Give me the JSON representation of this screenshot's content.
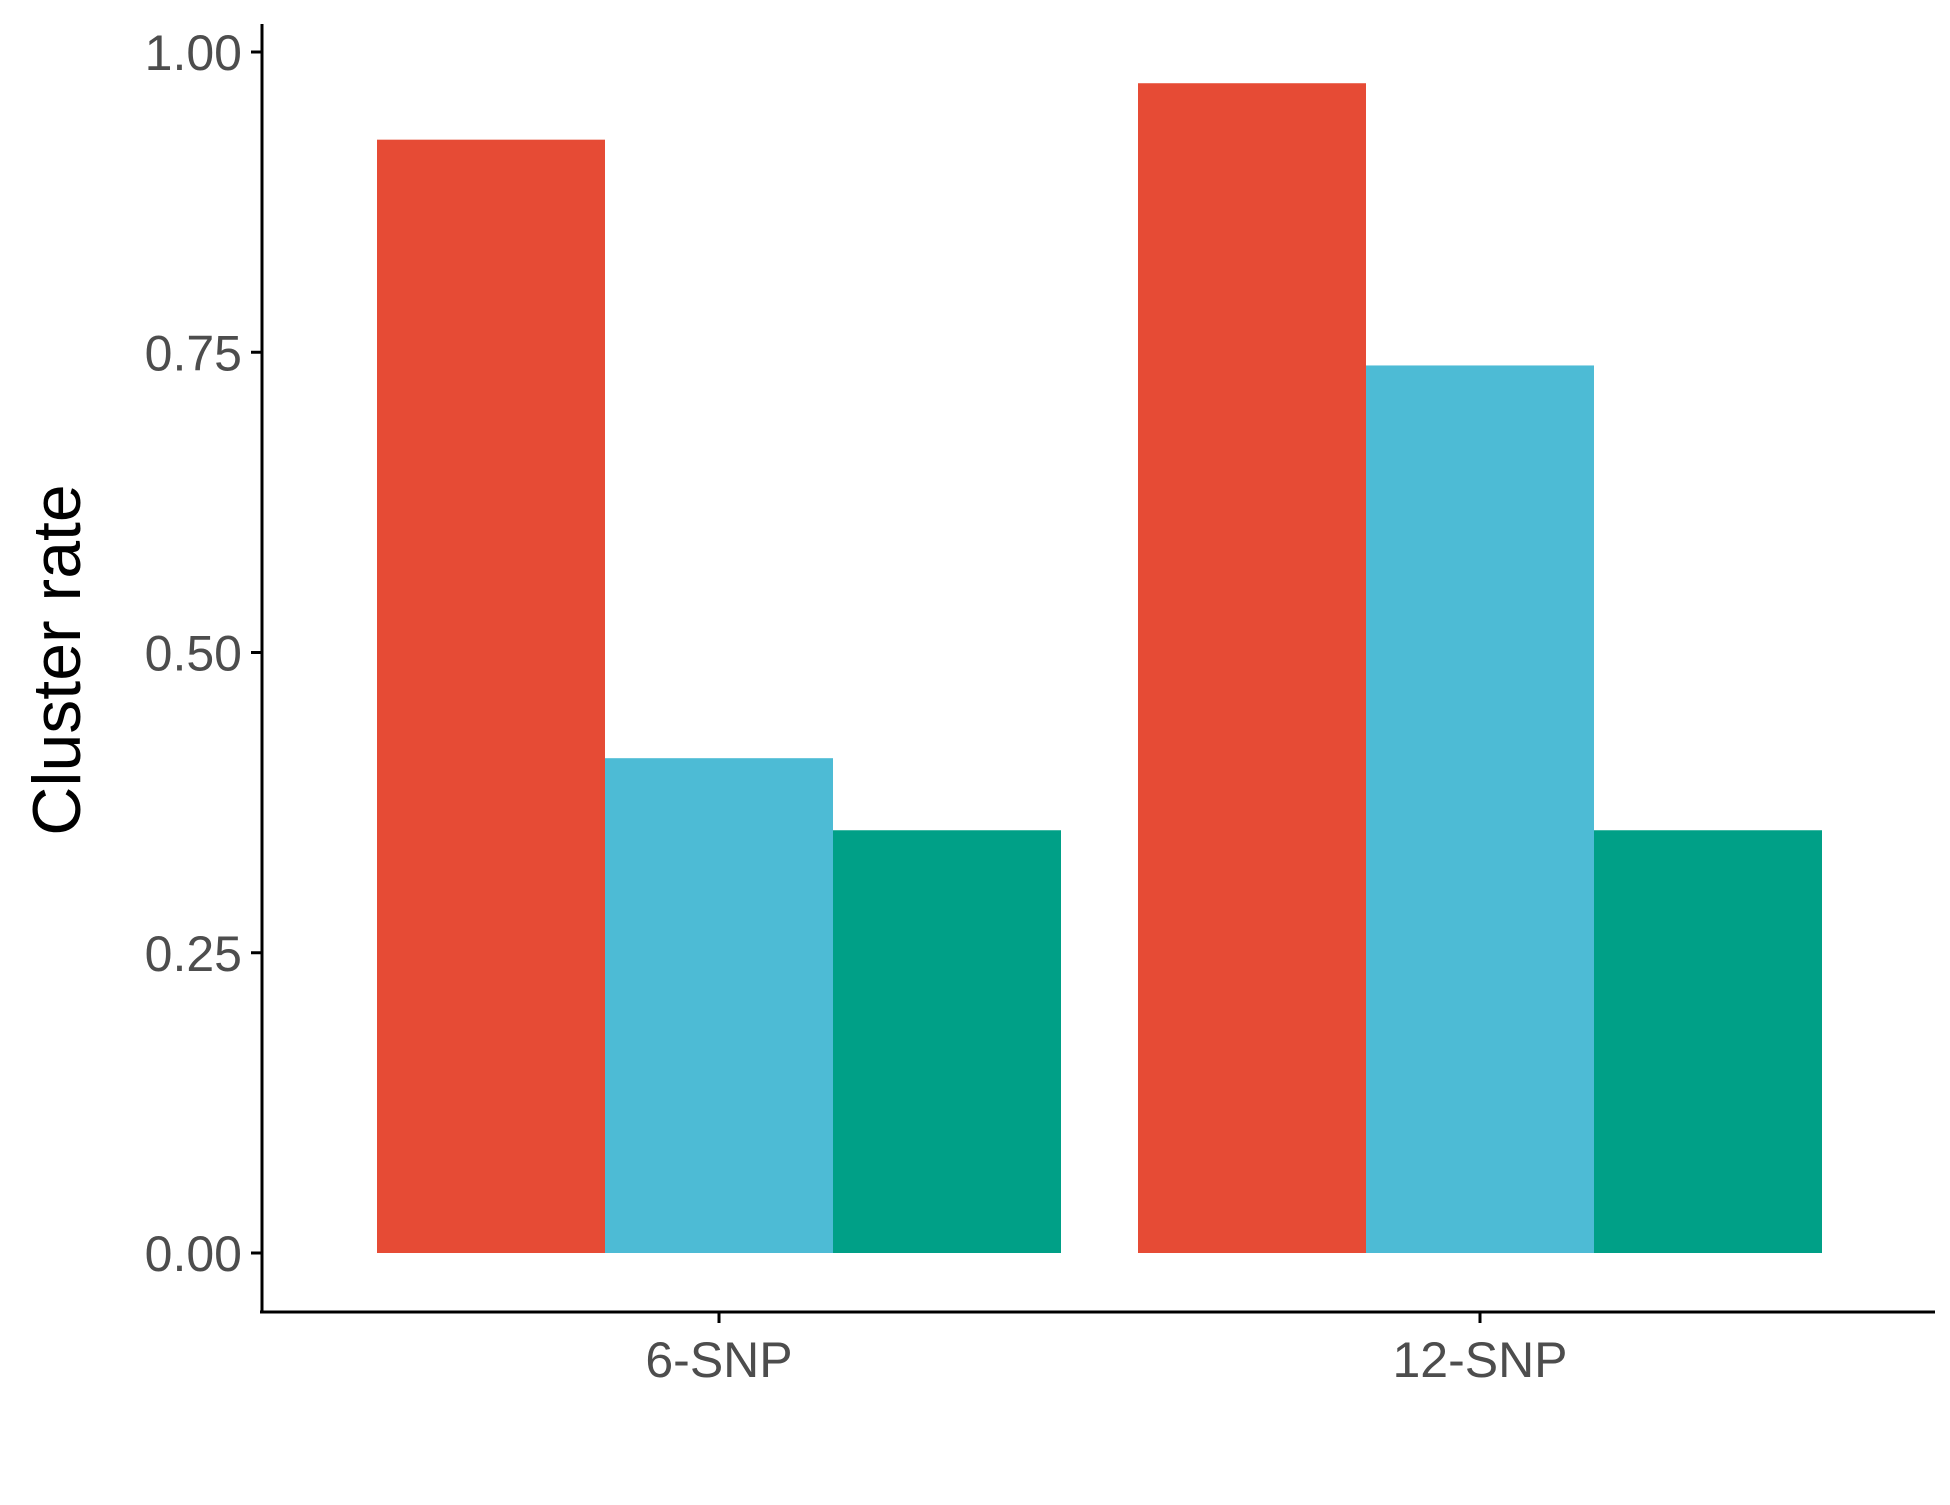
{
  "chart_data": {
    "type": "bar",
    "title": "",
    "xlabel": "",
    "ylabel": "Cluster rate",
    "categories": [
      "6-SNP",
      "12-SNP"
    ],
    "series": [
      {
        "color": "#E64B35",
        "values": [
          0.927,
          0.974
        ]
      },
      {
        "color": "#4DBBD5",
        "values": [
          0.412,
          0.739
        ]
      },
      {
        "color": "#00A087",
        "values": [
          0.352,
          0.352
        ]
      }
    ],
    "ylim": [
      0,
      1
    ],
    "yticks": [
      0.0,
      0.25,
      0.5,
      0.75,
      1.0
    ],
    "ytick_labels": [
      "0.00",
      "0.25",
      "0.50",
      "0.75",
      "1.00"
    ],
    "grid": false,
    "legend": "none"
  }
}
